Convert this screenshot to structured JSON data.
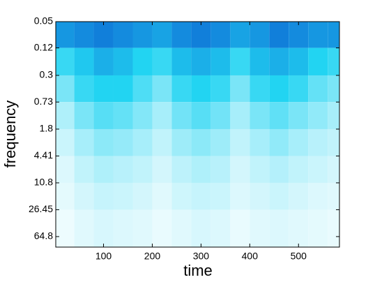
{
  "chart_data": {
    "type": "heatmap",
    "xlabel": "time",
    "ylabel": "frequency",
    "xlim": [
      2,
      584
    ],
    "xticks": [
      100,
      200,
      300,
      400,
      500
    ],
    "ylim": [
      0.05,
      92
    ],
    "y_scale": "log",
    "y_direction": "down",
    "yticks": [
      0.05,
      0.12,
      0.3,
      0.73,
      1.8,
      4.41,
      10.8,
      26.45,
      64.8
    ],
    "x_edges": [
      2,
      40,
      80,
      120,
      160,
      200,
      240,
      280,
      320,
      360,
      400,
      440,
      480,
      520,
      560,
      584
    ],
    "y_edges": [
      0.05,
      0.12,
      0.3,
      0.73,
      1.8,
      4.41,
      10.8,
      26.45,
      92
    ],
    "colorscale": [
      "#ffffff",
      "#22d4f2",
      "#0a5ad0"
    ],
    "z": [
      [
        0.75,
        0.8,
        0.85,
        0.8,
        0.75,
        0.7,
        0.8,
        0.85,
        0.8,
        0.7,
        0.75,
        0.85,
        0.8,
        0.75,
        0.75
      ],
      [
        0.45,
        0.55,
        0.65,
        0.6,
        0.5,
        0.45,
        0.6,
        0.65,
        0.6,
        0.45,
        0.6,
        0.65,
        0.6,
        0.5,
        0.45
      ],
      [
        0.3,
        0.45,
        0.5,
        0.5,
        0.4,
        0.3,
        0.45,
        0.5,
        0.45,
        0.3,
        0.45,
        0.5,
        0.45,
        0.35,
        0.3
      ],
      [
        0.18,
        0.3,
        0.38,
        0.35,
        0.28,
        0.2,
        0.32,
        0.38,
        0.32,
        0.2,
        0.3,
        0.36,
        0.3,
        0.25,
        0.2
      ],
      [
        0.12,
        0.2,
        0.26,
        0.24,
        0.2,
        0.14,
        0.22,
        0.26,
        0.22,
        0.14,
        0.2,
        0.25,
        0.2,
        0.16,
        0.14
      ],
      [
        0.08,
        0.14,
        0.18,
        0.16,
        0.14,
        0.1,
        0.15,
        0.18,
        0.16,
        0.1,
        0.14,
        0.17,
        0.14,
        0.12,
        0.1
      ],
      [
        0.06,
        0.1,
        0.13,
        0.12,
        0.1,
        0.07,
        0.11,
        0.13,
        0.12,
        0.08,
        0.1,
        0.12,
        0.1,
        0.08,
        0.07
      ],
      [
        0.04,
        0.07,
        0.09,
        0.08,
        0.07,
        0.05,
        0.07,
        0.09,
        0.08,
        0.05,
        0.07,
        0.08,
        0.07,
        0.06,
        0.05
      ]
    ]
  }
}
